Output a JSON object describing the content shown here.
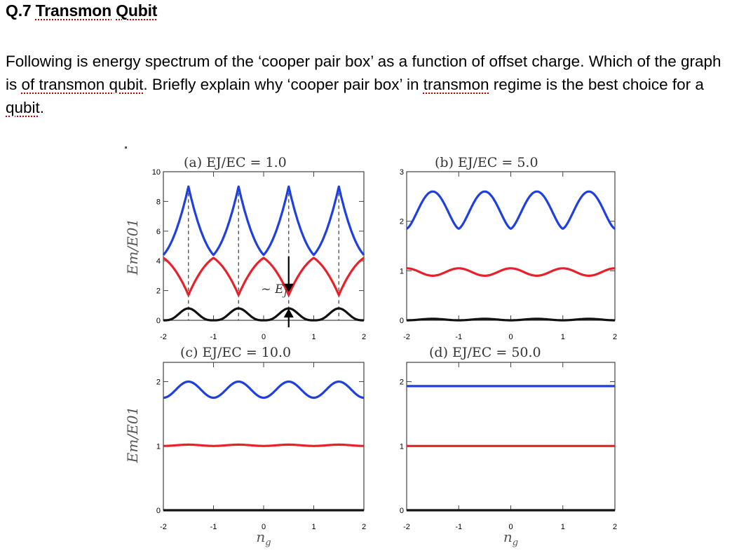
{
  "heading": {
    "prefix": "Q.7 ",
    "word1": "Transmon",
    "space": " ",
    "word2": "Qubit"
  },
  "question": {
    "p1": "Following is energy spectrum of the ‘cooper pair box’ as a function of offset charge. Which of the graph is ",
    "w1": "of transmon qubit",
    "p2": ". Briefly explain why ‘cooper pair box’ in ",
    "w2": "transmon",
    "p3": " regime is the best choice for a ",
    "w3": "qubit",
    "p4": "."
  },
  "colors": {
    "level0": "#111111",
    "level1": "#e8202a",
    "level2": "#1f3fe0",
    "axis": "#444444"
  },
  "annotation": "~ E",
  "annotation_sub": "J",
  "chart_data": [
    {
      "type": "line",
      "title": "(a) E_J/E_C = 1.0",
      "title_text": "(a) EJ/EC = 1.0",
      "ejec": 1.0,
      "xlabel": "",
      "ylabel": "E_m/E_01",
      "ylabel_text": "Em/E01",
      "xlim": [
        -2,
        2
      ],
      "ylim": [
        0,
        10
      ],
      "xticks": [
        "-2",
        "-1",
        "0",
        "1",
        "2"
      ],
      "yticks": [
        "0",
        "2",
        "4",
        "6",
        "8",
        "10"
      ],
      "series": [
        {
          "level": 0,
          "x": [
            -2,
            -1.5,
            -1,
            -0.5,
            0,
            0.5,
            1,
            1.5,
            2
          ],
          "y": [
            0.0,
            0.8,
            0.0,
            0.8,
            0.0,
            0.8,
            0.0,
            0.8,
            0.0
          ]
        },
        {
          "level": 1,
          "x": [
            -2,
            -1.5,
            -1,
            -0.5,
            0,
            0.5,
            1,
            1.5,
            2
          ],
          "y": [
            4.2,
            1.7,
            4.2,
            1.7,
            4.2,
            1.7,
            4.2,
            1.7,
            4.2
          ]
        },
        {
          "level": 2,
          "x": [
            -2,
            -1.5,
            -1,
            -0.5,
            0,
            0.5,
            1,
            1.5,
            2
          ],
          "y": [
            4.4,
            9.0,
            4.4,
            9.0,
            4.4,
            9.0,
            4.4,
            9.0,
            4.4
          ]
        }
      ]
    },
    {
      "type": "line",
      "title": "(b) E_J/E_C = 5.0",
      "title_text": "(b) EJ/EC = 5.0",
      "ejec": 5.0,
      "xlabel": "",
      "ylabel": "",
      "xlim": [
        -2,
        2
      ],
      "ylim": [
        0,
        3
      ],
      "xticks": [
        "-2",
        "-1",
        "0",
        "1",
        "2"
      ],
      "yticks": [
        "0",
        "1",
        "2",
        "3"
      ],
      "series": [
        {
          "level": 0,
          "x": [
            -2,
            -1.5,
            -1,
            -0.5,
            0,
            0.5,
            1,
            1.5,
            2
          ],
          "y": [
            0.0,
            0.03,
            0.0,
            0.03,
            0.0,
            0.03,
            0.0,
            0.03,
            0.0
          ]
        },
        {
          "level": 1,
          "x": [
            -2,
            -1.5,
            -1,
            -0.5,
            0,
            0.5,
            1,
            1.5,
            2
          ],
          "y": [
            1.05,
            0.9,
            1.05,
            0.9,
            1.05,
            0.9,
            1.05,
            0.9,
            1.05
          ]
        },
        {
          "level": 2,
          "x": [
            -2,
            -1.5,
            -1,
            -0.5,
            0,
            0.5,
            1,
            1.5,
            2
          ],
          "y": [
            1.85,
            2.6,
            1.85,
            2.6,
            1.85,
            2.6,
            1.85,
            2.6,
            1.85
          ]
        }
      ]
    },
    {
      "type": "line",
      "title": "(c) E_J/E_C = 10.0",
      "title_text": "(c) EJ/EC = 10.0",
      "ejec": 10.0,
      "xlabel": "n_g",
      "ylabel": "E_m/E_01",
      "ylabel_text": "Em/E01",
      "xlim": [
        -2,
        2
      ],
      "ylim": [
        0,
        2.3
      ],
      "xticks": [
        "-2",
        "-1",
        "0",
        "1",
        "2"
      ],
      "yticks": [
        "0",
        "1",
        "2"
      ],
      "series": [
        {
          "level": 0,
          "x": [
            -2,
            -1.5,
            -1,
            -0.5,
            0,
            0.5,
            1,
            1.5,
            2
          ],
          "y": [
            0.0,
            0.0,
            0.0,
            0.0,
            0.0,
            0.0,
            0.0,
            0.0,
            0.0
          ]
        },
        {
          "level": 1,
          "x": [
            -2,
            -1.5,
            -1,
            -0.5,
            0,
            0.5,
            1,
            1.5,
            2
          ],
          "y": [
            1.0,
            1.02,
            1.0,
            1.02,
            1.0,
            1.02,
            1.0,
            1.02,
            1.0
          ]
        },
        {
          "level": 2,
          "x": [
            -2,
            -1.5,
            -1,
            -0.5,
            0,
            0.5,
            1,
            1.5,
            2
          ],
          "y": [
            1.75,
            2.0,
            1.75,
            2.0,
            1.75,
            2.0,
            1.75,
            2.0,
            1.75
          ]
        }
      ]
    },
    {
      "type": "line",
      "title": "(d) E_J/E_C = 50.0",
      "title_text": "(d) EJ/EC = 50.0",
      "ejec": 50.0,
      "xlabel": "n_g",
      "ylabel": "",
      "xlim": [
        -2,
        2
      ],
      "ylim": [
        0,
        2.3
      ],
      "xticks": [
        "-2",
        "-1",
        "0",
        "1",
        "2"
      ],
      "yticks": [
        "0",
        "1",
        "2"
      ],
      "series": [
        {
          "level": 0,
          "x": [
            -2,
            -1.5,
            -1,
            -0.5,
            0,
            0.5,
            1,
            1.5,
            2
          ],
          "y": [
            0.0,
            0.0,
            0.0,
            0.0,
            0.0,
            0.0,
            0.0,
            0.0,
            0.0
          ]
        },
        {
          "level": 1,
          "x": [
            -2,
            -1.5,
            -1,
            -0.5,
            0,
            0.5,
            1,
            1.5,
            2
          ],
          "y": [
            1.0,
            1.0,
            1.0,
            1.0,
            1.0,
            1.0,
            1.0,
            1.0,
            1.0
          ]
        },
        {
          "level": 2,
          "x": [
            -2,
            -1.5,
            -1,
            -0.5,
            0,
            0.5,
            1,
            1.5,
            2
          ],
          "y": [
            1.93,
            1.93,
            1.93,
            1.93,
            1.93,
            1.93,
            1.93,
            1.93,
            1.93
          ]
        }
      ]
    }
  ]
}
